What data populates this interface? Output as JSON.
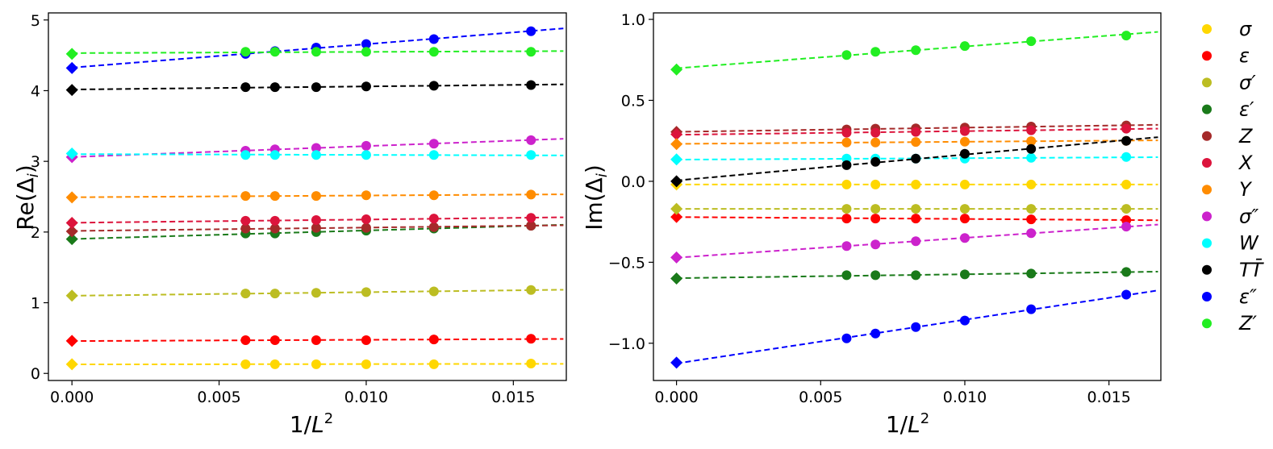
{
  "chart_data": [
    {
      "type": "scatter",
      "title": "",
      "xlabel": "1/L^2",
      "ylabel": "Re(Δ_i)",
      "xlim": [
        -0.0008,
        0.0168
      ],
      "ylim": [
        -0.1,
        5.1
      ],
      "x_ticks": [
        0.0,
        0.005,
        0.01,
        0.015
      ],
      "x_tick_labels": [
        "0.000",
        "0.005",
        "0.010",
        "0.015"
      ],
      "y_ticks": [
        0,
        1,
        2,
        3,
        4,
        5
      ],
      "y_tick_labels": [
        "0",
        "1",
        "2",
        "3",
        "4",
        "5"
      ],
      "x": [
        0.0059,
        0.0069,
        0.0083,
        0.01,
        0.0123,
        0.0156
      ],
      "extrapolation_x": 0.0,
      "fit_x_range": [
        0.0,
        0.0167
      ],
      "series": [
        {
          "name": "σ",
          "color": "#FFD700",
          "values": [
            0.13,
            0.13,
            0.13,
            0.13,
            0.13,
            0.14
          ],
          "extrapolated": 0.13
        },
        {
          "name": "ε",
          "color": "#FF0000",
          "values": [
            0.47,
            0.47,
            0.47,
            0.47,
            0.48,
            0.49
          ],
          "extrapolated": 0.46
        },
        {
          "name": "σ'",
          "color": "#BCBD22",
          "values": [
            1.13,
            1.13,
            1.14,
            1.15,
            1.16,
            1.18
          ],
          "extrapolated": 1.1
        },
        {
          "name": "ε'",
          "color": "#1A7A1A",
          "values": [
            1.98,
            1.98,
            2.0,
            2.02,
            2.05,
            2.09
          ],
          "extrapolated": 1.9
        },
        {
          "name": "Z",
          "color": "#A52A2A",
          "values": [
            2.05,
            2.05,
            2.06,
            2.06,
            2.07,
            2.09
          ],
          "extrapolated": 2.01
        },
        {
          "name": "X",
          "color": "#DC143C",
          "values": [
            2.16,
            2.16,
            2.17,
            2.18,
            2.19,
            2.2
          ],
          "extrapolated": 2.13
        },
        {
          "name": "Y",
          "color": "#FF8C00",
          "values": [
            2.51,
            2.51,
            2.51,
            2.52,
            2.52,
            2.53
          ],
          "extrapolated": 2.49
        },
        {
          "name": "σ''",
          "color": "#CC22CC",
          "values": [
            3.15,
            3.17,
            3.19,
            3.22,
            3.25,
            3.3
          ],
          "extrapolated": 3.06
        },
        {
          "name": "W",
          "color": "#00FFFF",
          "values": [
            3.09,
            3.09,
            3.09,
            3.09,
            3.09,
            3.09
          ],
          "extrapolated": 3.11
        },
        {
          "name": "TT̄",
          "color": "#000000",
          "values": [
            4.05,
            4.05,
            4.05,
            4.06,
            4.07,
            4.08
          ],
          "extrapolated": 4.01
        },
        {
          "name": "ε''",
          "color": "#0000FF",
          "values": [
            4.52,
            4.56,
            4.61,
            4.66,
            4.73,
            4.84
          ],
          "extrapolated": 4.32
        },
        {
          "name": "Z'",
          "color": "#22EE22",
          "values": [
            4.55,
            4.55,
            4.55,
            4.55,
            4.55,
            4.55
          ],
          "extrapolated": 4.52
        }
      ]
    },
    {
      "type": "scatter",
      "title": "",
      "xlabel": "1/L^2",
      "ylabel": "Im(Δ_i)",
      "xlim": [
        -0.0008,
        0.0168
      ],
      "ylim": [
        -1.23,
        1.04
      ],
      "x_ticks": [
        0.0,
        0.005,
        0.01,
        0.015
      ],
      "x_tick_labels": [
        "0.000",
        "0.005",
        "0.010",
        "0.015"
      ],
      "y_ticks": [
        -1.0,
        -0.5,
        0.0,
        0.5,
        1.0
      ],
      "y_tick_labels": [
        "−1.0",
        "−0.5",
        "0.0",
        "0.5",
        "1.0"
      ],
      "x": [
        0.0059,
        0.0069,
        0.0083,
        0.01,
        0.0123,
        0.0156
      ],
      "extrapolation_x": 0.0,
      "fit_x_range": [
        0.0,
        0.0167
      ],
      "series": [
        {
          "name": "σ",
          "color": "#FFD700",
          "values": [
            -0.02,
            -0.02,
            -0.02,
            -0.02,
            -0.02,
            -0.02
          ],
          "extrapolated": -0.02
        },
        {
          "name": "ε",
          "color": "#FF0000",
          "values": [
            -0.23,
            -0.23,
            -0.23,
            -0.23,
            -0.235,
            -0.24
          ],
          "extrapolated": -0.22
        },
        {
          "name": "σ'",
          "color": "#BCBD22",
          "values": [
            -0.17,
            -0.17,
            -0.17,
            -0.17,
            -0.17,
            -0.17
          ],
          "extrapolated": -0.17
        },
        {
          "name": "ε'",
          "color": "#1A7A1A",
          "values": [
            -0.58,
            -0.58,
            -0.58,
            -0.575,
            -0.57,
            -0.56
          ],
          "extrapolated": -0.6
        },
        {
          "name": "Z",
          "color": "#A52A2A",
          "values": [
            0.32,
            0.325,
            0.327,
            0.332,
            0.338,
            0.345
          ],
          "extrapolated": 0.305
        },
        {
          "name": "X",
          "color": "#DC143C",
          "values": [
            0.3,
            0.3,
            0.305,
            0.31,
            0.315,
            0.325
          ],
          "extrapolated": 0.29
        },
        {
          "name": "Y",
          "color": "#FF8C00",
          "values": [
            0.24,
            0.24,
            0.243,
            0.245,
            0.248,
            0.25
          ],
          "extrapolated": 0.23
        },
        {
          "name": "σ''",
          "color": "#CC22CC",
          "values": [
            -0.4,
            -0.39,
            -0.37,
            -0.35,
            -0.32,
            -0.28
          ],
          "extrapolated": -0.47
        },
        {
          "name": "W",
          "color": "#00FFFF",
          "values": [
            0.14,
            0.14,
            0.14,
            0.14,
            0.145,
            0.15
          ],
          "extrapolated": 0.135
        },
        {
          "name": "TT̄",
          "color": "#000000",
          "values": [
            0.1,
            0.12,
            0.14,
            0.17,
            0.2,
            0.25
          ],
          "extrapolated": 0.0
        },
        {
          "name": "ε''",
          "color": "#0000FF",
          "values": [
            -0.97,
            -0.94,
            -0.9,
            -0.86,
            -0.79,
            -0.7
          ],
          "extrapolated": -1.12
        },
        {
          "name": "Z'",
          "color": "#22EE22",
          "values": [
            0.78,
            0.8,
            0.81,
            0.835,
            0.865,
            0.9
          ],
          "extrapolated": 0.69
        }
      ]
    }
  ],
  "legend": {
    "placement": "right",
    "entries": [
      {
        "label": "σ",
        "color": "#FFD700"
      },
      {
        "label": "ε",
        "color": "#FF0000"
      },
      {
        "label": "σ′",
        "color": "#BCBD22"
      },
      {
        "label": "ε′",
        "color": "#1A7A1A"
      },
      {
        "label": "Z",
        "color": "#A52A2A"
      },
      {
        "label": "X",
        "color": "#DC143C"
      },
      {
        "label": "Y",
        "color": "#FF8C00"
      },
      {
        "label": "σ″",
        "color": "#CC22CC"
      },
      {
        "label": "W",
        "color": "#00FFFF"
      },
      {
        "label": "TT̄",
        "color": "#000000"
      },
      {
        "label": "ε″",
        "color": "#0000FF"
      },
      {
        "label": "Z′",
        "color": "#22EE22"
      }
    ]
  }
}
